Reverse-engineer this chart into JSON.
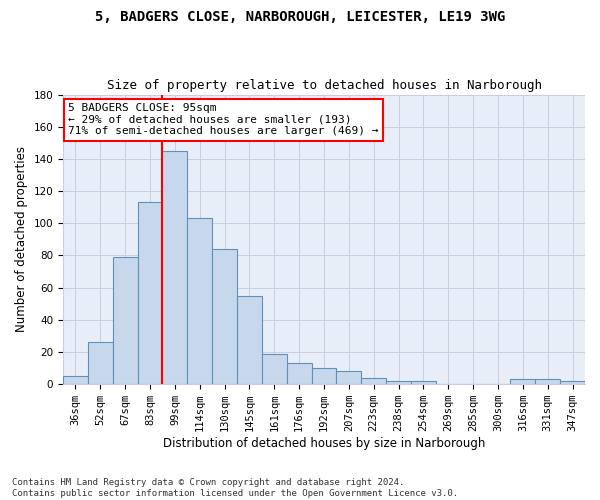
{
  "title1": "5, BADGERS CLOSE, NARBOROUGH, LEICESTER, LE19 3WG",
  "title2": "Size of property relative to detached houses in Narborough",
  "xlabel": "Distribution of detached houses by size in Narborough",
  "ylabel": "Number of detached properties",
  "categories": [
    "36sqm",
    "52sqm",
    "67sqm",
    "83sqm",
    "99sqm",
    "114sqm",
    "130sqm",
    "145sqm",
    "161sqm",
    "176sqm",
    "192sqm",
    "207sqm",
    "223sqm",
    "238sqm",
    "254sqm",
    "269sqm",
    "285sqm",
    "300sqm",
    "316sqm",
    "331sqm",
    "347sqm"
  ],
  "values": [
    5,
    26,
    79,
    113,
    145,
    103,
    84,
    55,
    19,
    13,
    10,
    8,
    4,
    2,
    2,
    0,
    0,
    0,
    3,
    3,
    2
  ],
  "bar_color": "#c8d8ec",
  "bar_edge_color": "#6090b8",
  "vline_x": 3.5,
  "vline_color": "red",
  "annotation_text": "5 BADGERS CLOSE: 95sqm\n← 29% of detached houses are smaller (193)\n71% of semi-detached houses are larger (469) →",
  "annotation_box_color": "white",
  "annotation_box_edge_color": "red",
  "ylim": [
    0,
    180
  ],
  "yticks": [
    0,
    20,
    40,
    60,
    80,
    100,
    120,
    140,
    160,
    180
  ],
  "footnote": "Contains HM Land Registry data © Crown copyright and database right 2024.\nContains public sector information licensed under the Open Government Licence v3.0.",
  "background_color": "#ffffff",
  "plot_bg_color": "#e8eef8",
  "grid_color": "#c8d0e0",
  "title_fontsize": 10,
  "subtitle_fontsize": 9,
  "axis_label_fontsize": 8.5,
  "tick_fontsize": 7.5,
  "annotation_fontsize": 8,
  "footnote_fontsize": 6.5
}
